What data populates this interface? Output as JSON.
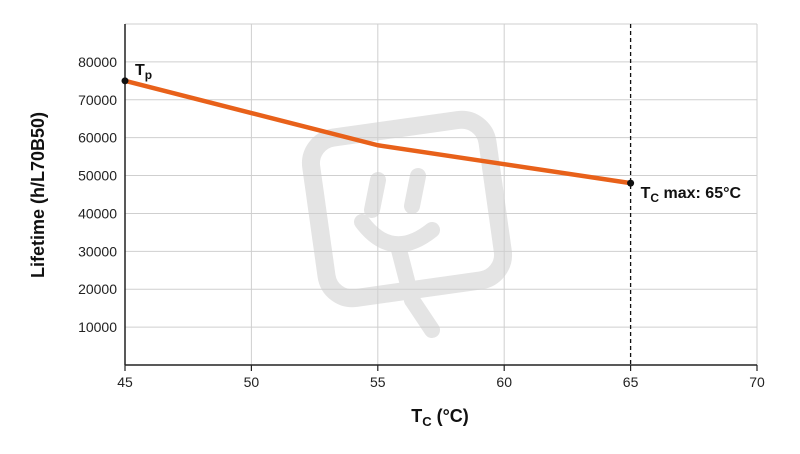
{
  "colors": {
    "line": "#e8611a",
    "grid": "#cfcfcf",
    "axis": "#222222",
    "marker": "#111111",
    "watermark": "#e4e4e4"
  },
  "watermark_icon": "plug-logo-watermark",
  "chart_data": {
    "type": "line",
    "xlabel": {
      "main": "T",
      "sub": "C",
      "rest": " (°C)"
    },
    "ylabel": "Lifetime (h/L70B50)",
    "xlim": [
      45,
      70
    ],
    "ylim": [
      0,
      90000
    ],
    "x_ticks": [
      45,
      50,
      55,
      60,
      65,
      70
    ],
    "y_ticks": [
      10000,
      20000,
      30000,
      40000,
      50000,
      60000,
      70000,
      80000
    ],
    "y_tick_labels": [
      "10000",
      "20000",
      "30000",
      "40000",
      "50000",
      "60000",
      "70000",
      "80000"
    ],
    "grid": true,
    "series": [
      {
        "x": [
          45,
          50,
          55,
          60,
          65
        ],
        "y": [
          75000,
          66500,
          58000,
          53000,
          48000
        ]
      }
    ],
    "vertical_line": {
      "x": 65,
      "style": "dashed"
    },
    "annotations": {
      "tp": {
        "main": "T",
        "sub": "p",
        "x": 45,
        "y": 75000
      },
      "tc_max": {
        "main": "T",
        "sub": "C",
        "rest": " max: 65°C",
        "x": 65,
        "y": 48000
      }
    }
  }
}
